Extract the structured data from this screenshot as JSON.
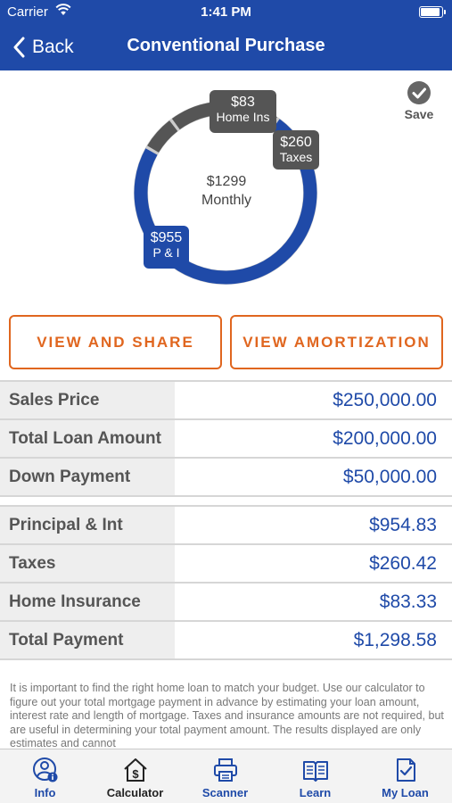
{
  "status_bar": {
    "carrier": "Carrier",
    "time": "1:41 PM"
  },
  "nav": {
    "back_label": "Back",
    "title": "Conventional Purchase"
  },
  "save_label": "Save",
  "summary": {
    "monthly_amount": "$1299",
    "monthly_label": "Monthly",
    "segments": [
      {
        "amount": "$83",
        "label": "Home Ins",
        "value": 83.33,
        "color": "#555555"
      },
      {
        "amount": "$260",
        "label": "Taxes",
        "value": 260.42,
        "color": "#555555"
      },
      {
        "amount": "$955",
        "label": "P & I",
        "value": 954.83,
        "color": "#1f4aa8"
      }
    ]
  },
  "buttons": {
    "view_share": "VIEW AND SHARE",
    "view_amortization": "VIEW AMORTIZATION"
  },
  "loan_table": [
    {
      "label": "Sales Price",
      "value": "$250,000.00"
    },
    {
      "label": "Total Loan Amount",
      "value": "$200,000.00"
    },
    {
      "label": "Down Payment",
      "value": "$50,000.00"
    }
  ],
  "payment_table": [
    {
      "label": "Principal & Int",
      "value": "$954.83"
    },
    {
      "label": "Taxes",
      "value": "$260.42"
    },
    {
      "label": "Home Insurance",
      "value": "$83.33"
    },
    {
      "label": "Total Payment",
      "value": "$1,298.58"
    }
  ],
  "disclaimer": "It is important to find the right home loan to match your budget. Use our calculator to figure out your total mortgage payment in advance by estimating your loan amount, interest rate and length of mortgage. Taxes and insurance amounts are not required, but are useful in determining your total payment amount.  The results displayed are only estimates and cannot",
  "tabs": [
    {
      "label": "Info",
      "icon": "info-person-icon"
    },
    {
      "label": "Calculator",
      "icon": "calculator-house-icon",
      "active": true
    },
    {
      "label": "Scanner",
      "icon": "printer-icon"
    },
    {
      "label": "Learn",
      "icon": "book-icon"
    },
    {
      "label": "My Loan",
      "icon": "document-check-icon"
    }
  ],
  "colors": {
    "primary": "#1f4aa8",
    "accent": "#e0661f",
    "gray_segment": "#555555",
    "label_bg": "#eeeeee"
  }
}
